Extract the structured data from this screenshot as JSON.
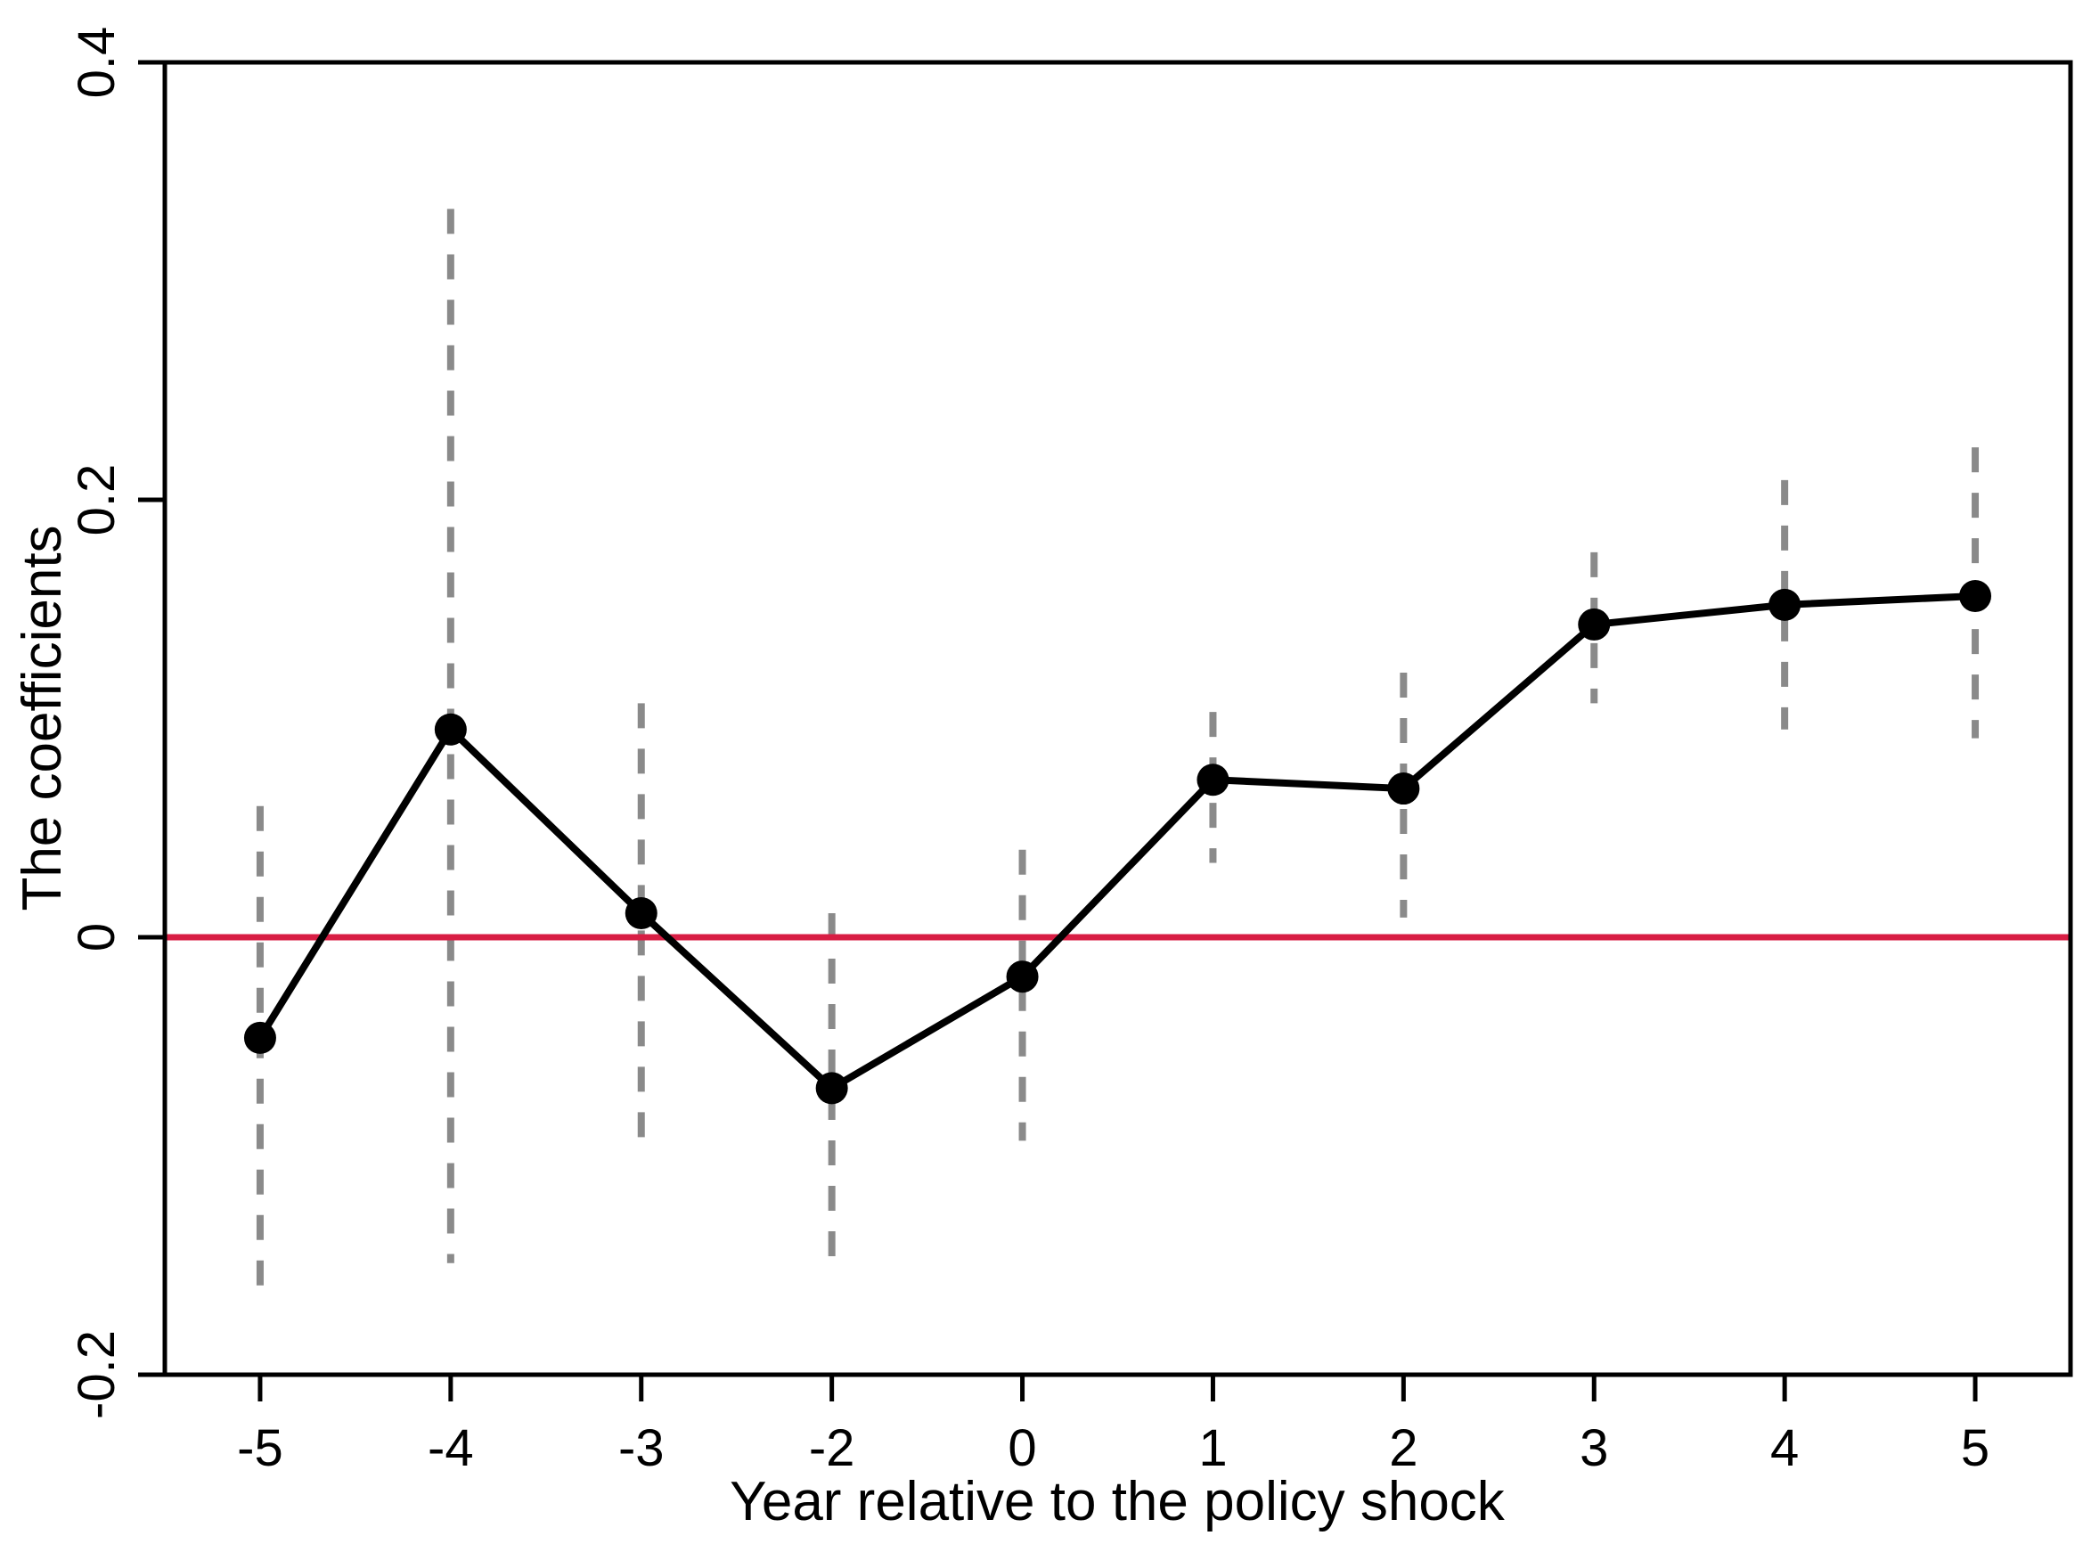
{
  "chart_data": {
    "type": "line",
    "title": "",
    "xlabel": "Year relative to the policy shock",
    "ylabel": "The coefficients",
    "x": [
      -5,
      -4,
      -3,
      -2,
      0,
      1,
      2,
      3,
      4,
      5
    ],
    "x_tick_labels": [
      "-5",
      "-4",
      "-3",
      "-2",
      "0",
      "1",
      "2",
      "3",
      "4",
      "5"
    ],
    "y_ticks": [
      0.4,
      0.2,
      0,
      -0.2
    ],
    "y_tick_labels": [
      "0.4",
      "0.2",
      "0",
      "-0.2"
    ],
    "ylim": [
      -0.2,
      0.4
    ],
    "grid": "off",
    "legend": "none",
    "series": [
      {
        "name": "coefficients",
        "values": [
          -0.046,
          0.095,
          0.011,
          -0.069,
          -0.018,
          0.072,
          0.068,
          0.143,
          0.152,
          0.156
        ],
        "ci_upper": [
          0.06,
          0.333,
          0.107,
          0.011,
          0.04,
          0.103,
          0.121,
          0.176,
          0.209,
          0.224
        ],
        "ci_lower": [
          -0.16,
          -0.149,
          -0.097,
          -0.154,
          -0.093,
          0.034,
          0.009,
          0.107,
          0.095,
          0.091
        ]
      }
    ],
    "reference_line": {
      "y": 0,
      "color": "#d81e44"
    },
    "colors": {
      "point": "#000000",
      "line": "#000000",
      "error_bar": "#8a8a8a",
      "axis": "#000000",
      "background": "#ffffff"
    }
  }
}
